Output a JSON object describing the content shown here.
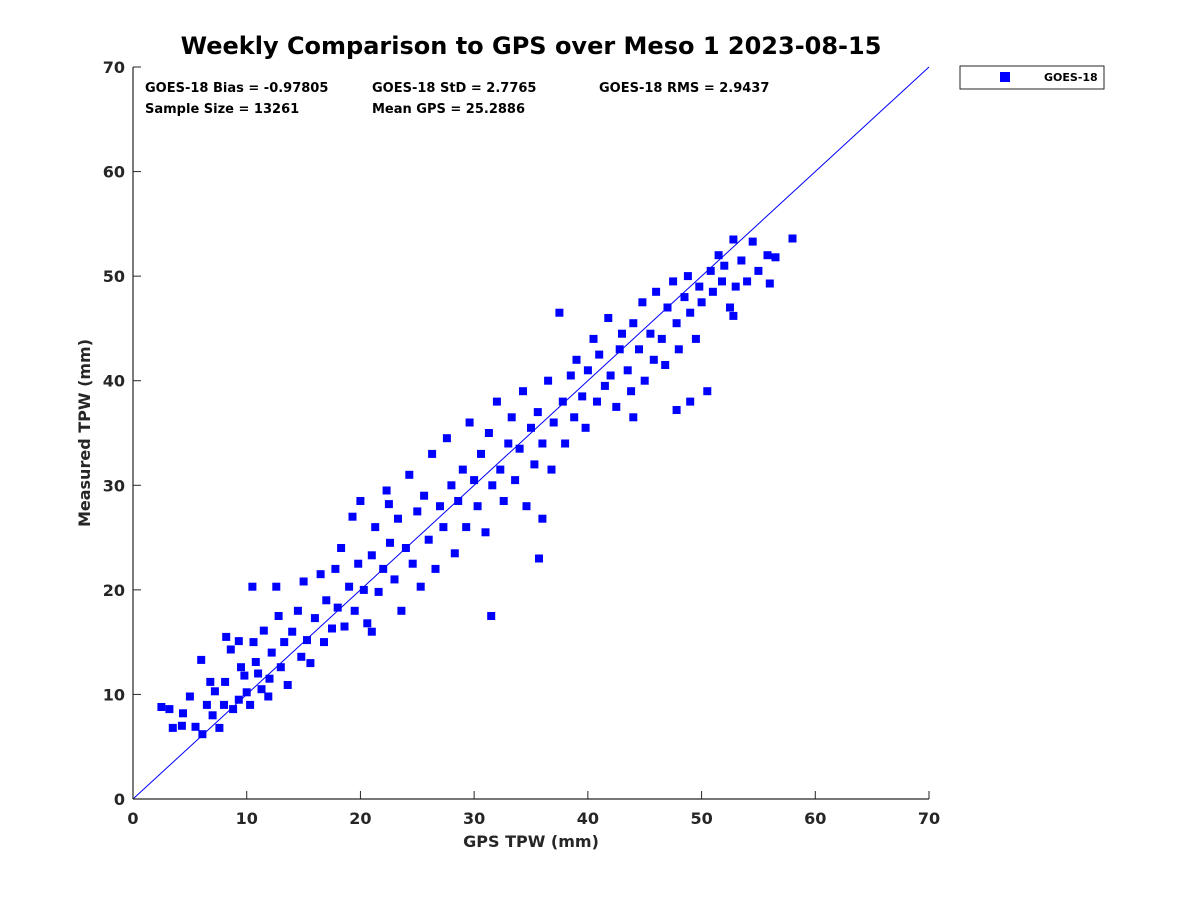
{
  "chart_data": {
    "type": "scatter",
    "title": "Weekly Comparison to GPS over Meso 1 2023-08-15",
    "xlabel": "GPS TPW (mm)",
    "ylabel": "Measured TPW (mm)",
    "xlim": [
      0,
      70
    ],
    "ylim": [
      0,
      70
    ],
    "xticks": [
      "0",
      "10",
      "20",
      "30",
      "40",
      "50",
      "60",
      "70"
    ],
    "yticks": [
      "0",
      "10",
      "20",
      "30",
      "40",
      "50",
      "60",
      "70"
    ],
    "grid": false,
    "legend_position": "outside-top-right",
    "reference_line": {
      "type": "one-to-one",
      "from": [
        0,
        0
      ],
      "to": [
        70,
        70
      ],
      "color": "#0000ff"
    },
    "stats": [
      "GOES-18 Bias = -0.97805",
      "GOES-18 StD = 2.7765",
      "GOES-18 RMS = 2.9437",
      "Sample Size = 13261",
      "Mean GPS = 25.2886"
    ],
    "series": [
      {
        "name": "GOES-18",
        "color": "#0000ff",
        "marker": "square",
        "points": [
          [
            2.5,
            8.8
          ],
          [
            3.2,
            8.6
          ],
          [
            3.5,
            6.8
          ],
          [
            4.3,
            7.0
          ],
          [
            4.4,
            8.2
          ],
          [
            5.0,
            9.8
          ],
          [
            5.5,
            6.9
          ],
          [
            6.0,
            13.3
          ],
          [
            6.1,
            6.2
          ],
          [
            6.5,
            9.0
          ],
          [
            6.8,
            11.2
          ],
          [
            7.0,
            8.0
          ],
          [
            7.2,
            10.3
          ],
          [
            7.6,
            6.8
          ],
          [
            8.0,
            9.0
          ],
          [
            8.1,
            11.2
          ],
          [
            8.2,
            15.5
          ],
          [
            8.6,
            14.3
          ],
          [
            8.8,
            8.6
          ],
          [
            9.3,
            9.5
          ],
          [
            9.3,
            15.1
          ],
          [
            9.5,
            12.6
          ],
          [
            9.8,
            11.8
          ],
          [
            10.0,
            10.2
          ],
          [
            10.3,
            9.0
          ],
          [
            10.5,
            20.3
          ],
          [
            10.6,
            15.0
          ],
          [
            10.8,
            13.1
          ],
          [
            11.0,
            12.0
          ],
          [
            11.3,
            10.5
          ],
          [
            11.5,
            16.1
          ],
          [
            11.9,
            9.8
          ],
          [
            12.0,
            11.5
          ],
          [
            12.2,
            14.0
          ],
          [
            12.6,
            20.3
          ],
          [
            12.8,
            17.5
          ],
          [
            13.0,
            12.6
          ],
          [
            13.3,
            15.0
          ],
          [
            13.6,
            10.9
          ],
          [
            14.0,
            16.0
          ],
          [
            14.5,
            18.0
          ],
          [
            14.8,
            13.6
          ],
          [
            15.0,
            20.8
          ],
          [
            15.3,
            15.2
          ],
          [
            15.6,
            13.0
          ],
          [
            16.0,
            17.3
          ],
          [
            16.5,
            21.5
          ],
          [
            16.8,
            15.0
          ],
          [
            17.0,
            19.0
          ],
          [
            17.5,
            16.3
          ],
          [
            17.8,
            22.0
          ],
          [
            18.0,
            18.3
          ],
          [
            18.3,
            24.0
          ],
          [
            18.6,
            16.5
          ],
          [
            19.0,
            20.3
          ],
          [
            19.3,
            27.0
          ],
          [
            19.5,
            18.0
          ],
          [
            19.8,
            22.5
          ],
          [
            20.0,
            28.5
          ],
          [
            20.3,
            20.0
          ],
          [
            20.6,
            16.8
          ],
          [
            21.0,
            23.3
          ],
          [
            21.3,
            26.0
          ],
          [
            21.6,
            19.8
          ],
          [
            22.0,
            22.0
          ],
          [
            22.3,
            29.5
          ],
          [
            22.6,
            24.5
          ],
          [
            23.0,
            21.0
          ],
          [
            23.3,
            26.8
          ],
          [
            23.6,
            18.0
          ],
          [
            24.0,
            24.0
          ],
          [
            24.3,
            31.0
          ],
          [
            24.6,
            22.5
          ],
          [
            25.0,
            27.5
          ],
          [
            25.3,
            20.3
          ],
          [
            25.6,
            29.0
          ],
          [
            26.0,
            24.8
          ],
          [
            26.3,
            33.0
          ],
          [
            26.6,
            22.0
          ],
          [
            27.0,
            28.0
          ],
          [
            27.3,
            26.0
          ],
          [
            27.6,
            34.5
          ],
          [
            28.0,
            30.0
          ],
          [
            28.3,
            23.5
          ],
          [
            28.6,
            28.5
          ],
          [
            29.0,
            31.5
          ],
          [
            29.3,
            26.0
          ],
          [
            29.6,
            36.0
          ],
          [
            30.0,
            30.5
          ],
          [
            30.3,
            28.0
          ],
          [
            30.6,
            33.0
          ],
          [
            31.0,
            25.5
          ],
          [
            31.3,
            35.0
          ],
          [
            31.6,
            30.0
          ],
          [
            32.0,
            38.0
          ],
          [
            32.3,
            31.5
          ],
          [
            32.6,
            28.5
          ],
          [
            33.0,
            34.0
          ],
          [
            33.3,
            36.5
          ],
          [
            33.6,
            30.5
          ],
          [
            34.0,
            33.5
          ],
          [
            34.3,
            39.0
          ],
          [
            34.6,
            28.0
          ],
          [
            35.0,
            35.5
          ],
          [
            35.3,
            32.0
          ],
          [
            35.6,
            37.0
          ],
          [
            36.0,
            34.0
          ],
          [
            36.5,
            40.0
          ],
          [
            36.8,
            31.5
          ],
          [
            37.0,
            36.0
          ],
          [
            37.5,
            46.5
          ],
          [
            37.8,
            38.0
          ],
          [
            38.0,
            34.0
          ],
          [
            38.5,
            40.5
          ],
          [
            38.8,
            36.5
          ],
          [
            39.0,
            42.0
          ],
          [
            39.5,
            38.5
          ],
          [
            39.8,
            35.5
          ],
          [
            40.0,
            41.0
          ],
          [
            40.5,
            44.0
          ],
          [
            40.8,
            38.0
          ],
          [
            41.0,
            42.5
          ],
          [
            41.5,
            39.5
          ],
          [
            41.8,
            46.0
          ],
          [
            42.0,
            40.5
          ],
          [
            42.5,
            37.5
          ],
          [
            42.8,
            43.0
          ],
          [
            43.0,
            44.5
          ],
          [
            43.5,
            41.0
          ],
          [
            43.8,
            39.0
          ],
          [
            44.0,
            45.5
          ],
          [
            44.5,
            43.0
          ],
          [
            44.8,
            47.5
          ],
          [
            45.0,
            40.0
          ],
          [
            45.5,
            44.5
          ],
          [
            45.8,
            42.0
          ],
          [
            46.0,
            48.5
          ],
          [
            46.5,
            44.0
          ],
          [
            46.8,
            41.5
          ],
          [
            47.0,
            47.0
          ],
          [
            47.5,
            49.5
          ],
          [
            47.8,
            45.5
          ],
          [
            48.0,
            43.0
          ],
          [
            48.5,
            48.0
          ],
          [
            48.8,
            50.0
          ],
          [
            49.0,
            46.5
          ],
          [
            49.5,
            44.0
          ],
          [
            49.8,
            49.0
          ],
          [
            50.0,
            47.5
          ],
          [
            50.5,
            39.0
          ],
          [
            50.8,
            50.5
          ],
          [
            51.0,
            48.5
          ],
          [
            51.5,
            52.0
          ],
          [
            51.8,
            49.5
          ],
          [
            52.0,
            51.0
          ],
          [
            52.5,
            47.0
          ],
          [
            52.8,
            53.5
          ],
          [
            53.0,
            49.0
          ],
          [
            53.5,
            51.5
          ],
          [
            54.0,
            49.5
          ],
          [
            54.5,
            53.3
          ],
          [
            55.0,
            50.5
          ],
          [
            55.8,
            52.0
          ],
          [
            56.0,
            49.3
          ],
          [
            56.5,
            51.8
          ],
          [
            58.0,
            53.6
          ],
          [
            52.8,
            46.2
          ],
          [
            35.7,
            23.0
          ],
          [
            31.5,
            17.5
          ],
          [
            21.0,
            16.0
          ],
          [
            22.5,
            28.2
          ],
          [
            44.0,
            36.5
          ],
          [
            47.8,
            37.2
          ],
          [
            49.0,
            38.0
          ],
          [
            36.0,
            26.8
          ]
        ]
      }
    ]
  }
}
